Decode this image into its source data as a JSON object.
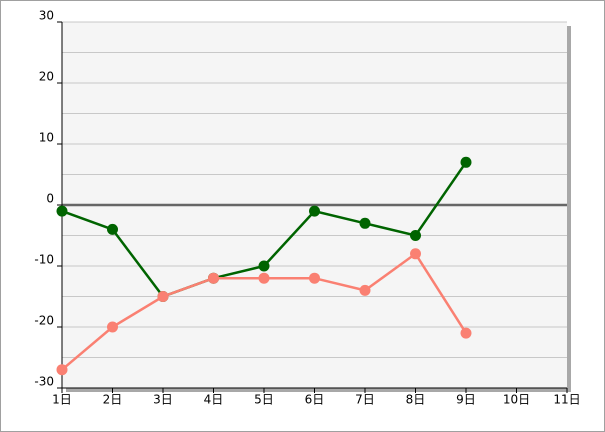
{
  "chart_data": {
    "type": "line",
    "categories": [
      "1日",
      "2日",
      "3日",
      "4日",
      "5日",
      "6日",
      "7日",
      "8日",
      "9日",
      "10日",
      "11日"
    ],
    "series": [
      {
        "color": "#006400",
        "values": [
          -1,
          -4,
          -15,
          -12,
          -10,
          -1,
          -3,
          -5,
          7,
          null,
          null
        ]
      },
      {
        "color": "#fa8072",
        "values": [
          -27,
          -20,
          -15,
          -12,
          -12,
          -12,
          -14,
          -8,
          -21,
          null,
          null
        ]
      }
    ],
    "ylim": [
      -30,
      30
    ],
    "yticks": [
      -30,
      -20,
      -10,
      0,
      10,
      20,
      30
    ],
    "y_minor_ticks": [
      -25,
      -15,
      -5,
      5,
      15,
      25
    ],
    "grid": true
  }
}
